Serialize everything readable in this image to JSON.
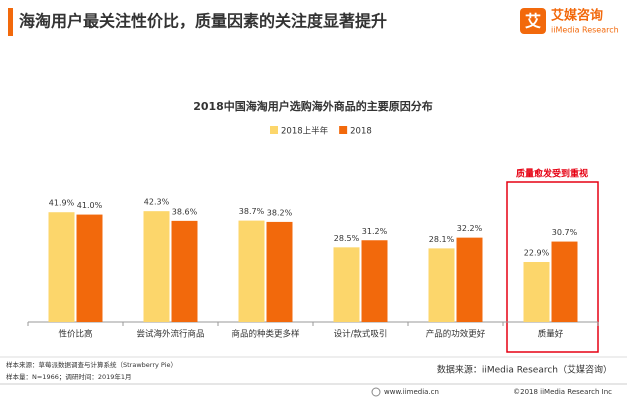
{
  "header": {
    "title": "海淘用户最关注性价比，质量因素的关注度显著提升",
    "logo_icon": "艾",
    "logo_cn": "艾媒咨询",
    "logo_en": "iiMedia Research"
  },
  "chart_data": {
    "type": "bar",
    "title": "2018中国海淘用户选购海外商品的主要原因分布",
    "categories": [
      "性价比高",
      "尝试海外流行商品",
      "商品的种类更多样",
      "设计/款式吸引",
      "产品的功效更好",
      "质量好"
    ],
    "series": [
      {
        "name": "2018上半年",
        "color": "#fcd66b",
        "values": [
          41.9,
          42.3,
          38.7,
          28.5,
          28.1,
          22.9
        ],
        "value_labels": [
          "41.9%",
          "42.3%",
          "38.7%",
          "28.5%",
          "28.1%",
          "22.9%"
        ]
      },
      {
        "name": "2018",
        "color": "#f2690c",
        "values": [
          41.0,
          38.6,
          38.2,
          31.2,
          32.2,
          30.7
        ],
        "value_labels": [
          "41.0%",
          "38.6%",
          "38.2%",
          "31.2%",
          "32.2%",
          "30.7%"
        ]
      }
    ],
    "ylim": [
      0,
      50
    ],
    "legend": "top",
    "annotation": "质量愈发受到重视"
  },
  "notes": [
    "样本来源：草莓派数据调查与计算系统（Strawberry Pie）",
    "样本量：N=1966；调研时间：2019年1月"
  ],
  "source": "数据来源：iiMedia Research（艾媒咨询）",
  "footer": {
    "site": "www.iimedia.cn",
    "copyright": "©2018  iiMedia Research  Inc"
  }
}
